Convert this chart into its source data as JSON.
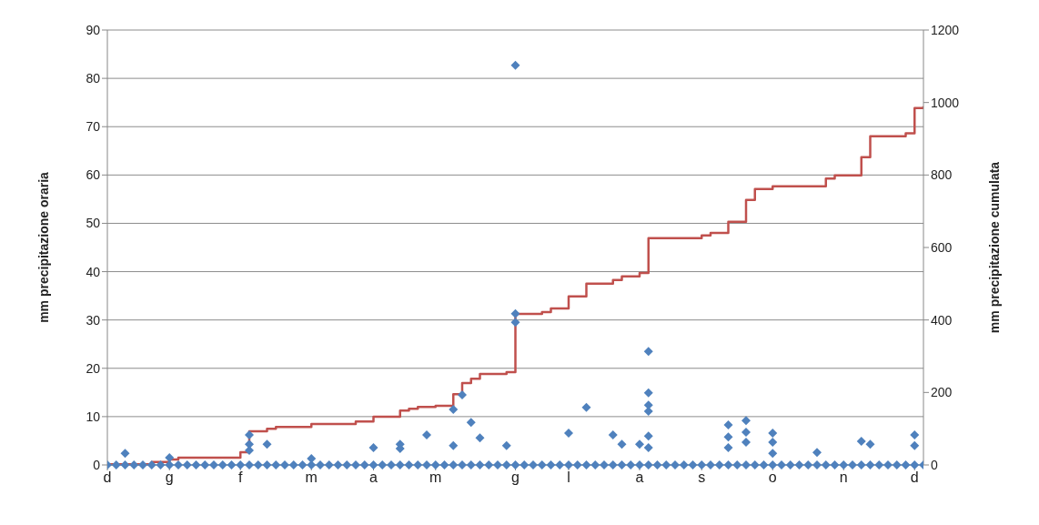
{
  "chart_data": {
    "type": "scatter",
    "ylabel": "mm precipitazione oraria",
    "y2label": "mm precipitazione cumulata",
    "categories": [
      "d",
      null,
      null,
      null,
      null,
      null,
      null,
      "g",
      null,
      null,
      null,
      null,
      null,
      null,
      null,
      "f",
      null,
      null,
      null,
      null,
      null,
      null,
      null,
      "m",
      null,
      null,
      null,
      null,
      null,
      null,
      "a",
      null,
      null,
      null,
      null,
      null,
      null,
      "m",
      null,
      null,
      null,
      null,
      null,
      null,
      null,
      null,
      "g",
      null,
      null,
      null,
      null,
      null,
      "l",
      null,
      null,
      null,
      null,
      null,
      null,
      null,
      "a",
      null,
      null,
      null,
      null,
      null,
      null,
      "s",
      null,
      null,
      null,
      null,
      null,
      null,
      null,
      "o",
      null,
      null,
      null,
      null,
      null,
      null,
      null,
      "n",
      null,
      null,
      null,
      null,
      null,
      null,
      null,
      "d",
      null
    ],
    "ylim": [
      0,
      90
    ],
    "yticks": [
      0,
      10,
      20,
      30,
      40,
      50,
      60,
      70,
      80,
      90
    ],
    "y2lim": [
      0,
      1200
    ],
    "y2ticks": [
      0,
      200,
      400,
      600,
      800,
      1000,
      1200
    ],
    "grid": "y",
    "marker": "diamond",
    "series": [
      {
        "type": "scatter",
        "color": "#4f81bd",
        "values": [
          0,
          0,
          0,
          0,
          0,
          0,
          0,
          0,
          0,
          0,
          0,
          0,
          0,
          0,
          0,
          0,
          0,
          0,
          0,
          0,
          0,
          0,
          0,
          0,
          0,
          0,
          0,
          0,
          0,
          0,
          0,
          0,
          0,
          0,
          0,
          0,
          0,
          0,
          0,
          0,
          0,
          0,
          0,
          0,
          0,
          0,
          0,
          0,
          0,
          0,
          0,
          0,
          0,
          0,
          0,
          0,
          0,
          0,
          0,
          0,
          0,
          0,
          0,
          0,
          0,
          0,
          0,
          0,
          0,
          0,
          0,
          0,
          0,
          0,
          0,
          0,
          0,
          0,
          0,
          0,
          0,
          0,
          0,
          0,
          0,
          0,
          0,
          0,
          0,
          0,
          0,
          0,
          0
        ]
      },
      {
        "type": "scatter",
        "color": "#4f81bd",
        "values": [
          null,
          null,
          2.4,
          null,
          null,
          null,
          null,
          1.5,
          null,
          null,
          null,
          null,
          null,
          null,
          null,
          null,
          6.2,
          null,
          4.3,
          null,
          null,
          null,
          null,
          1.3,
          null,
          null,
          null,
          null,
          null,
          null,
          3.6,
          null,
          null,
          4.3,
          null,
          null,
          6.2,
          null,
          null,
          11.5,
          14.5,
          8.8,
          5.6,
          null,
          null,
          4,
          82.7,
          null,
          null,
          null,
          null,
          null,
          6.6,
          null,
          11.9,
          null,
          null,
          6.2,
          4.3,
          null,
          4.3,
          23.5,
          null,
          null,
          null,
          null,
          null,
          null,
          null,
          null,
          8.3,
          null,
          9.2,
          null,
          null,
          6.6,
          null,
          null,
          null,
          null,
          2.6,
          null,
          null,
          null,
          null,
          4.9,
          4.3,
          null,
          null,
          null,
          null,
          6.2,
          null
        ]
      },
      {
        "type": "scatter",
        "color": "#4f81bd",
        "values": [
          null,
          null,
          null,
          null,
          null,
          null,
          null,
          null,
          null,
          null,
          null,
          null,
          null,
          null,
          null,
          null,
          4.3,
          null,
          null,
          null,
          null,
          null,
          null,
          null,
          null,
          null,
          null,
          null,
          null,
          null,
          null,
          null,
          null,
          3.4,
          null,
          null,
          null,
          null,
          null,
          4,
          null,
          null,
          null,
          null,
          null,
          null,
          31.3,
          null,
          null,
          null,
          null,
          null,
          null,
          null,
          null,
          null,
          null,
          null,
          null,
          null,
          null,
          14.9,
          null,
          null,
          null,
          null,
          null,
          null,
          null,
          null,
          5.8,
          null,
          6.8,
          null,
          null,
          4.7,
          null,
          null,
          null,
          null,
          null,
          null,
          null,
          null,
          null,
          null,
          null,
          null,
          null,
          null,
          null,
          4,
          null
        ]
      },
      {
        "type": "scatter",
        "color": "#4f81bd",
        "values": [
          null,
          null,
          null,
          null,
          null,
          null,
          null,
          null,
          null,
          null,
          null,
          null,
          null,
          null,
          null,
          null,
          3,
          null,
          null,
          null,
          null,
          null,
          null,
          null,
          null,
          null,
          null,
          null,
          null,
          null,
          null,
          null,
          null,
          null,
          null,
          null,
          null,
          null,
          null,
          null,
          null,
          null,
          null,
          null,
          null,
          null,
          29.5,
          null,
          null,
          null,
          null,
          null,
          null,
          null,
          null,
          null,
          null,
          null,
          null,
          null,
          null,
          12.4,
          null,
          null,
          null,
          null,
          null,
          null,
          null,
          null,
          3.6,
          null,
          4.7,
          null,
          null,
          2.4,
          null,
          null,
          null,
          null,
          null,
          null,
          null,
          null,
          null,
          null,
          null,
          null,
          null,
          null,
          null,
          null,
          null
        ]
      },
      {
        "type": "scatter",
        "color": "#4f81bd",
        "values": [
          null,
          null,
          null,
          null,
          null,
          null,
          null,
          null,
          null,
          null,
          null,
          null,
          null,
          null,
          null,
          null,
          null,
          null,
          null,
          null,
          null,
          null,
          null,
          null,
          null,
          null,
          null,
          null,
          null,
          null,
          null,
          null,
          null,
          null,
          null,
          null,
          null,
          null,
          null,
          null,
          null,
          null,
          null,
          null,
          null,
          null,
          null,
          null,
          null,
          null,
          null,
          null,
          null,
          null,
          null,
          null,
          null,
          null,
          null,
          null,
          null,
          11.1,
          null,
          null,
          null,
          null,
          null,
          null,
          null,
          null,
          null,
          null,
          null,
          null,
          null,
          null,
          null,
          null,
          null,
          null,
          null,
          null,
          null,
          null,
          null,
          null,
          null,
          null,
          null,
          null,
          null,
          null,
          null
        ]
      },
      {
        "type": "scatter",
        "color": "#4f81bd",
        "values": [
          null,
          null,
          null,
          null,
          null,
          null,
          null,
          null,
          null,
          null,
          null,
          null,
          null,
          null,
          null,
          null,
          null,
          null,
          null,
          null,
          null,
          null,
          null,
          null,
          null,
          null,
          null,
          null,
          null,
          null,
          null,
          null,
          null,
          null,
          null,
          null,
          null,
          null,
          null,
          null,
          null,
          null,
          null,
          null,
          null,
          null,
          null,
          null,
          null,
          null,
          null,
          null,
          null,
          null,
          null,
          null,
          null,
          null,
          null,
          null,
          null,
          6,
          null,
          null,
          null,
          null,
          null,
          null,
          null,
          null,
          null,
          null,
          null,
          null,
          null,
          null,
          null,
          null,
          null,
          null,
          null,
          null,
          null,
          null,
          null,
          null,
          null,
          null,
          null,
          null,
          null,
          null,
          null
        ]
      },
      {
        "type": "scatter",
        "color": "#4f81bd",
        "values": [
          null,
          null,
          null,
          null,
          null,
          null,
          null,
          null,
          null,
          null,
          null,
          null,
          null,
          null,
          null,
          null,
          null,
          null,
          null,
          null,
          null,
          null,
          null,
          null,
          null,
          null,
          null,
          null,
          null,
          null,
          null,
          null,
          null,
          null,
          null,
          null,
          null,
          null,
          null,
          null,
          null,
          null,
          null,
          null,
          null,
          null,
          null,
          null,
          null,
          null,
          null,
          null,
          null,
          null,
          null,
          null,
          null,
          null,
          null,
          null,
          null,
          3.6,
          null,
          null,
          null,
          null,
          null,
          null,
          null,
          null,
          null,
          null,
          null,
          null,
          null,
          null,
          null,
          null,
          null,
          null,
          null,
          null,
          null,
          null,
          null,
          null,
          null,
          null,
          null,
          null,
          null,
          null,
          null
        ]
      },
      {
        "type": "step",
        "axis": "y2",
        "color": "#c0504d",
        "marker": "none",
        "values": [
          2,
          2,
          2,
          2,
          2,
          8,
          8,
          15,
          20,
          20,
          20,
          20,
          20,
          20,
          20,
          35,
          93,
          93,
          100,
          105,
          105,
          105,
          105,
          113,
          113,
          113,
          113,
          113,
          120,
          120,
          133,
          133,
          133,
          150,
          155,
          160,
          160,
          163,
          163,
          195,
          226,
          238,
          251,
          251,
          251,
          256,
          417,
          417,
          417,
          422,
          432,
          432,
          465,
          465,
          500,
          500,
          500,
          510,
          520,
          520,
          530,
          626,
          626,
          626,
          626,
          626,
          626,
          633,
          640,
          640,
          671,
          671,
          731,
          761,
          761,
          769,
          769,
          769,
          769,
          769,
          769,
          790,
          799,
          799,
          799,
          849,
          907,
          907,
          907,
          907,
          915,
          985,
          990
        ]
      }
    ]
  }
}
